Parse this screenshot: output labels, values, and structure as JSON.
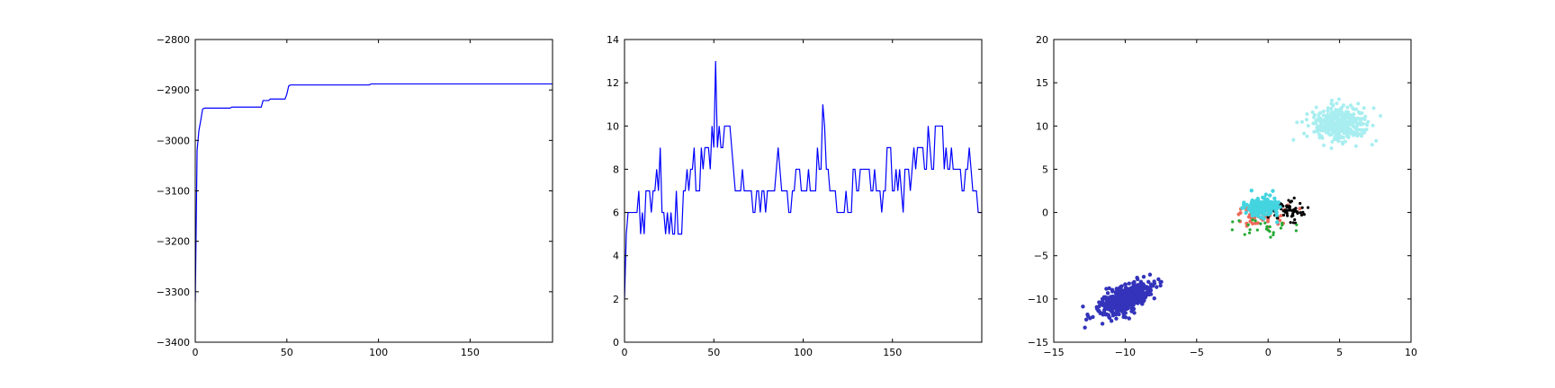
{
  "chart_data": [
    {
      "type": "line",
      "title": "",
      "xlabel": "",
      "ylabel": "",
      "xlim": [
        0,
        195
      ],
      "ylim": [
        -3400,
        -2800
      ],
      "xticks": [
        0,
        50,
        100,
        150
      ],
      "yticks": [
        -3400,
        -3300,
        -3200,
        -3100,
        -3000,
        -2900,
        -2800
      ],
      "grid": false,
      "series": [
        {
          "color": "#0000ff",
          "x": [
            0,
            1,
            2,
            3,
            4,
            5,
            19,
            20,
            36,
            37,
            40,
            41,
            49,
            50,
            51,
            52,
            95,
            96,
            195
          ],
          "y": [
            -3320,
            -3020,
            -2980,
            -2960,
            -2938,
            -2936,
            -2936,
            -2934,
            -2934,
            -2921,
            -2921,
            -2918,
            -2918,
            -2908,
            -2892,
            -2890,
            -2890,
            -2888,
            -2888
          ]
        }
      ]
    },
    {
      "type": "line",
      "title": "",
      "xlabel": "",
      "ylabel": "",
      "xlim": [
        0,
        200
      ],
      "ylim": [
        0,
        14
      ],
      "xticks": [
        0,
        50,
        100,
        150
      ],
      "yticks": [
        0,
        2,
        4,
        6,
        8,
        10,
        12,
        14
      ],
      "grid": false,
      "series": [
        {
          "color": "#0000ff",
          "x": [
            0,
            1,
            2,
            3,
            4,
            5,
            6,
            7,
            8,
            9,
            10,
            11,
            12,
            13,
            14,
            15,
            16,
            17,
            18,
            19,
            20,
            21,
            22,
            23,
            24,
            25,
            26,
            27,
            28,
            29,
            30,
            31,
            32,
            33,
            34,
            35,
            36,
            37,
            38,
            39,
            40,
            41,
            42,
            43,
            44,
            45,
            46,
            47,
            48,
            49,
            50,
            51,
            52,
            53,
            54,
            55,
            56,
            57,
            58,
            59,
            60,
            61,
            62,
            63,
            64,
            65,
            66,
            67,
            68,
            69,
            70,
            71,
            72,
            73,
            74,
            75,
            76,
            77,
            78,
            79,
            80,
            81,
            82,
            83,
            84,
            85,
            86,
            87,
            88,
            89,
            90,
            91,
            92,
            93,
            94,
            95,
            96,
            97,
            98,
            99,
            100,
            101,
            102,
            103,
            104,
            105,
            106,
            107,
            108,
            109,
            110,
            111,
            112,
            113,
            114,
            115,
            116,
            117,
            118,
            119,
            120,
            121,
            122,
            123,
            124,
            125,
            126,
            127,
            128,
            129,
            130,
            131,
            132,
            133,
            134,
            135,
            136,
            137,
            138,
            139,
            140,
            141,
            142,
            143,
            144,
            145,
            146,
            147,
            148,
            149,
            150,
            151,
            152,
            153,
            154,
            155,
            156,
            157,
            158,
            159,
            160,
            161,
            162,
            163,
            164,
            165,
            166,
            167,
            168,
            169,
            170,
            171,
            172,
            173,
            174,
            175,
            176,
            177,
            178,
            179,
            180,
            181,
            182,
            183,
            184,
            185,
            186,
            187,
            188,
            189,
            190,
            191,
            192,
            193,
            194,
            195,
            196,
            197,
            198,
            199,
            200
          ],
          "y": [
            2,
            5,
            6,
            6,
            6,
            6,
            6,
            6,
            7,
            5,
            6,
            5,
            7,
            7,
            7,
            6,
            7,
            7,
            8,
            7,
            9,
            6,
            6,
            5,
            6,
            5,
            6,
            5,
            5,
            7,
            5,
            5,
            5,
            7,
            7,
            8,
            7,
            8,
            8,
            9,
            7,
            7,
            7,
            9,
            8,
            9,
            9,
            9,
            8,
            10,
            9,
            13,
            9,
            10,
            9,
            9,
            10,
            10,
            10,
            10,
            9,
            8,
            7,
            7,
            7,
            7,
            8,
            7,
            7,
            7,
            7,
            7,
            6,
            6,
            7,
            7,
            6,
            7,
            7,
            6,
            7,
            7,
            7,
            7,
            7,
            8,
            9,
            8,
            7,
            7,
            7,
            7,
            6,
            6,
            7,
            7,
            8,
            8,
            8,
            7,
            7,
            7,
            7,
            8,
            7,
            7,
            7,
            7,
            9,
            8,
            8,
            11,
            10,
            8,
            8,
            7,
            7,
            7,
            7,
            6,
            6,
            6,
            6,
            6,
            7,
            6,
            6,
            6,
            8,
            8,
            7,
            7,
            8,
            8,
            8,
            8,
            8,
            8,
            7,
            7,
            8,
            7,
            7,
            7,
            6,
            7,
            7,
            9,
            9,
            9,
            7,
            7,
            8,
            7,
            8,
            7,
            6,
            8,
            8,
            8,
            7,
            8,
            9,
            8,
            9,
            9,
            9,
            9,
            8,
            8,
            10,
            9,
            8,
            8,
            10,
            10,
            10,
            10,
            10,
            8,
            9,
            8,
            8,
            9,
            8,
            8,
            8,
            8,
            8,
            7,
            7,
            8,
            8,
            9,
            8,
            7,
            7,
            7,
            6,
            6,
            6
          ]
        }
      ]
    },
    {
      "type": "scatter",
      "title": "",
      "xlabel": "",
      "ylabel": "",
      "xlim": [
        -15,
        10
      ],
      "ylim": [
        -15,
        20
      ],
      "xticks": [
        -15,
        -10,
        -5,
        0,
        5,
        10
      ],
      "yticks": [
        -15,
        -10,
        -5,
        0,
        5,
        10,
        15,
        20
      ],
      "grid": false,
      "clusters": [
        {
          "color": "#3333bb",
          "center": [
            -10,
            -10
          ],
          "spread": [
            0.9,
            0.9
          ],
          "count": 500,
          "corr": 0.6,
          "size": 2.2
        },
        {
          "color": "#a8eef0",
          "center": [
            5,
            10.2
          ],
          "spread": [
            1.0,
            1.0
          ],
          "count": 400,
          "corr": 0.0,
          "size": 2.0
        },
        {
          "color": "#ee6a5a",
          "center": [
            -0.6,
            -0.3
          ],
          "spread": [
            0.8,
            0.6
          ],
          "count": 60,
          "corr": 0.0,
          "size": 2.0
        },
        {
          "color": "#000000",
          "center": [
            1.4,
            0.0
          ],
          "spread": [
            0.7,
            0.7
          ],
          "count": 60,
          "corr": 0.0,
          "size": 1.6
        },
        {
          "color": "#22aa33",
          "center": [
            -0.5,
            -1.6
          ],
          "spread": [
            1.0,
            0.6
          ],
          "count": 25,
          "corr": 0.0,
          "size": 1.6
        },
        {
          "color": "#44d4e0",
          "center": [
            -0.4,
            0.7
          ],
          "spread": [
            0.6,
            0.55
          ],
          "count": 160,
          "corr": 0.0,
          "size": 2.2
        }
      ]
    }
  ]
}
